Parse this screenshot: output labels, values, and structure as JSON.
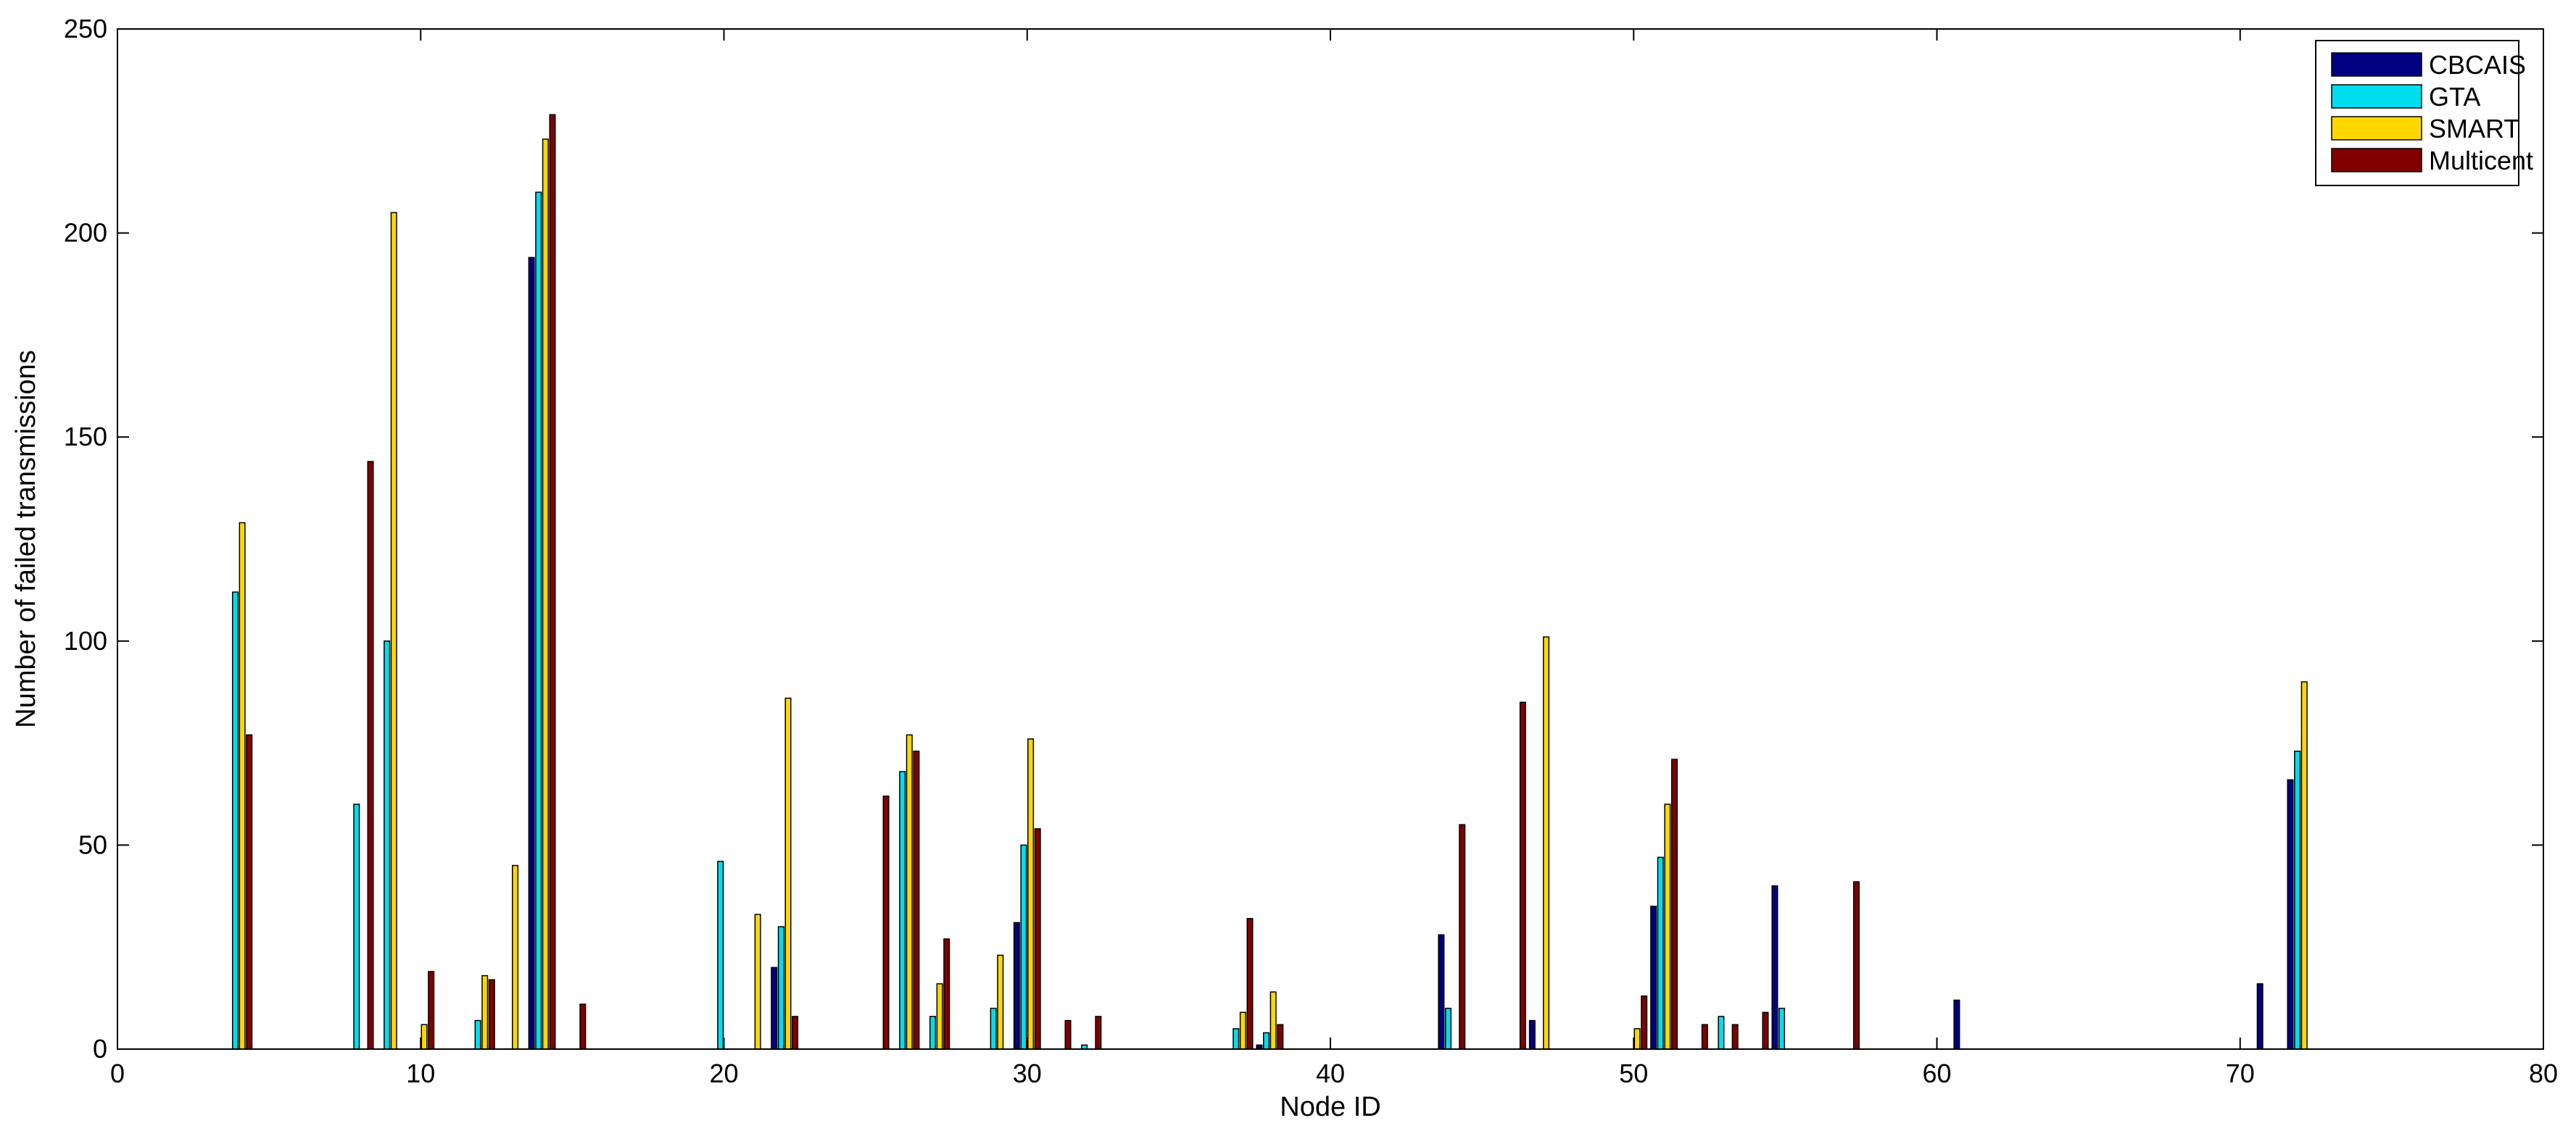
{
  "chart_data": {
    "type": "bar",
    "title": "",
    "xlabel": "Node ID",
    "ylabel": "Number of failed transmissions",
    "xlim": [
      0,
      80
    ],
    "ylim": [
      0,
      250
    ],
    "xticks": [
      0,
      10,
      20,
      30,
      40,
      50,
      60,
      70,
      80
    ],
    "yticks": [
      0,
      50,
      100,
      150,
      200,
      250
    ],
    "grid": false,
    "legend_position": "top-right",
    "categories": [
      4,
      8,
      9,
      10,
      12,
      13,
      14,
      15,
      20,
      21,
      22,
      25,
      26,
      27,
      29,
      30,
      31,
      32,
      37,
      38,
      44,
      46,
      47,
      50,
      51,
      52,
      53,
      54,
      55,
      57,
      61,
      71,
      72
    ],
    "series": [
      {
        "name": "CBCAIS",
        "color": "#000080",
        "values": [
          0,
          0,
          0,
          0,
          0,
          0,
          194,
          0,
          0,
          0,
          20,
          0,
          0,
          0,
          0,
          31,
          0,
          0,
          0,
          1,
          28,
          0,
          7,
          0,
          35,
          0,
          0,
          0,
          40,
          0,
          12,
          16,
          66
        ]
      },
      {
        "name": "GTA",
        "color": "#00DDEE",
        "values": [
          112,
          60,
          100,
          0,
          7,
          0,
          210,
          0,
          46,
          0,
          30,
          0,
          68,
          8,
          10,
          50,
          0,
          1,
          5,
          4,
          10,
          0,
          0,
          0,
          47,
          0,
          8,
          0,
          10,
          0,
          0,
          0,
          73
        ]
      },
      {
        "name": "SMART",
        "color": "#FFD700",
        "values": [
          129,
          0,
          205,
          6,
          18,
          45,
          223,
          0,
          0,
          33,
          86,
          0,
          77,
          16,
          23,
          76,
          0,
          0,
          9,
          14,
          0,
          0,
          101,
          5,
          60,
          0,
          0,
          0,
          0,
          0,
          0,
          0,
          90
        ]
      },
      {
        "name": "Multicent",
        "color": "#800000",
        "values": [
          77,
          144,
          0,
          19,
          17,
          0,
          229,
          11,
          0,
          0,
          8,
          62,
          73,
          27,
          0,
          54,
          7,
          8,
          32,
          6,
          55,
          85,
          0,
          13,
          71,
          6,
          6,
          9,
          0,
          41,
          0,
          0,
          0
        ]
      }
    ]
  }
}
